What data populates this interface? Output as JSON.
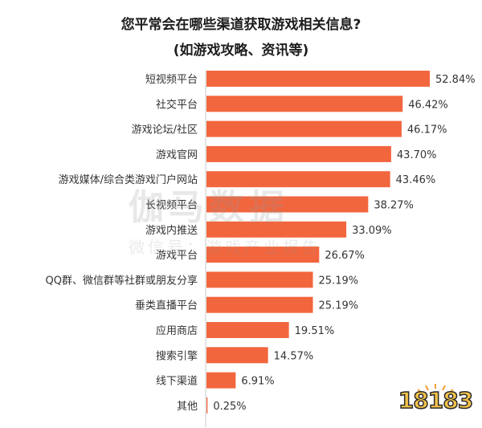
{
  "title": "您平常会在哪些渠道获取游戏相关信息?",
  "subtitle": "(如游戏攻略、资讯等)",
  "watermark": {
    "main": "伽马数据",
    "sub": "微信号：游戏产业报告"
  },
  "logo": {
    "text": "18183"
  },
  "colors": {
    "bar": "#f2663e",
    "label": "#333333",
    "axis": "#c8c8c8"
  },
  "chart_data": {
    "type": "bar",
    "orientation": "horizontal",
    "title": "您平常会在哪些渠道获取游戏相关信息?",
    "subtitle": "(如游戏攻略、资讯等)",
    "categories": [
      "短视频平台",
      "社交平台",
      "游戏论坛/社区",
      "游戏官网",
      "游戏媒体/综合类游戏门户网站",
      "长视频平台",
      "游戏内推送",
      "游戏平台",
      "QQ群、微信群等社群或朋友分享",
      "垂类直播平台",
      "应用商店",
      "搜索引擎",
      "线下渠道",
      "其他"
    ],
    "values": [
      52.84,
      46.42,
      46.17,
      43.7,
      43.46,
      38.27,
      33.09,
      26.67,
      25.19,
      25.19,
      19.51,
      14.57,
      6.91,
      0.25
    ],
    "value_labels": [
      "52.84%",
      "46.42%",
      "46.17%",
      "43.70%",
      "43.46%",
      "38.27%",
      "33.09%",
      "26.67%",
      "25.19%",
      "25.19%",
      "19.51%",
      "14.57%",
      "6.91%",
      "0.25%"
    ],
    "unit": "%",
    "xlim": [
      0,
      52.84
    ],
    "grid": false,
    "legend": "none"
  }
}
